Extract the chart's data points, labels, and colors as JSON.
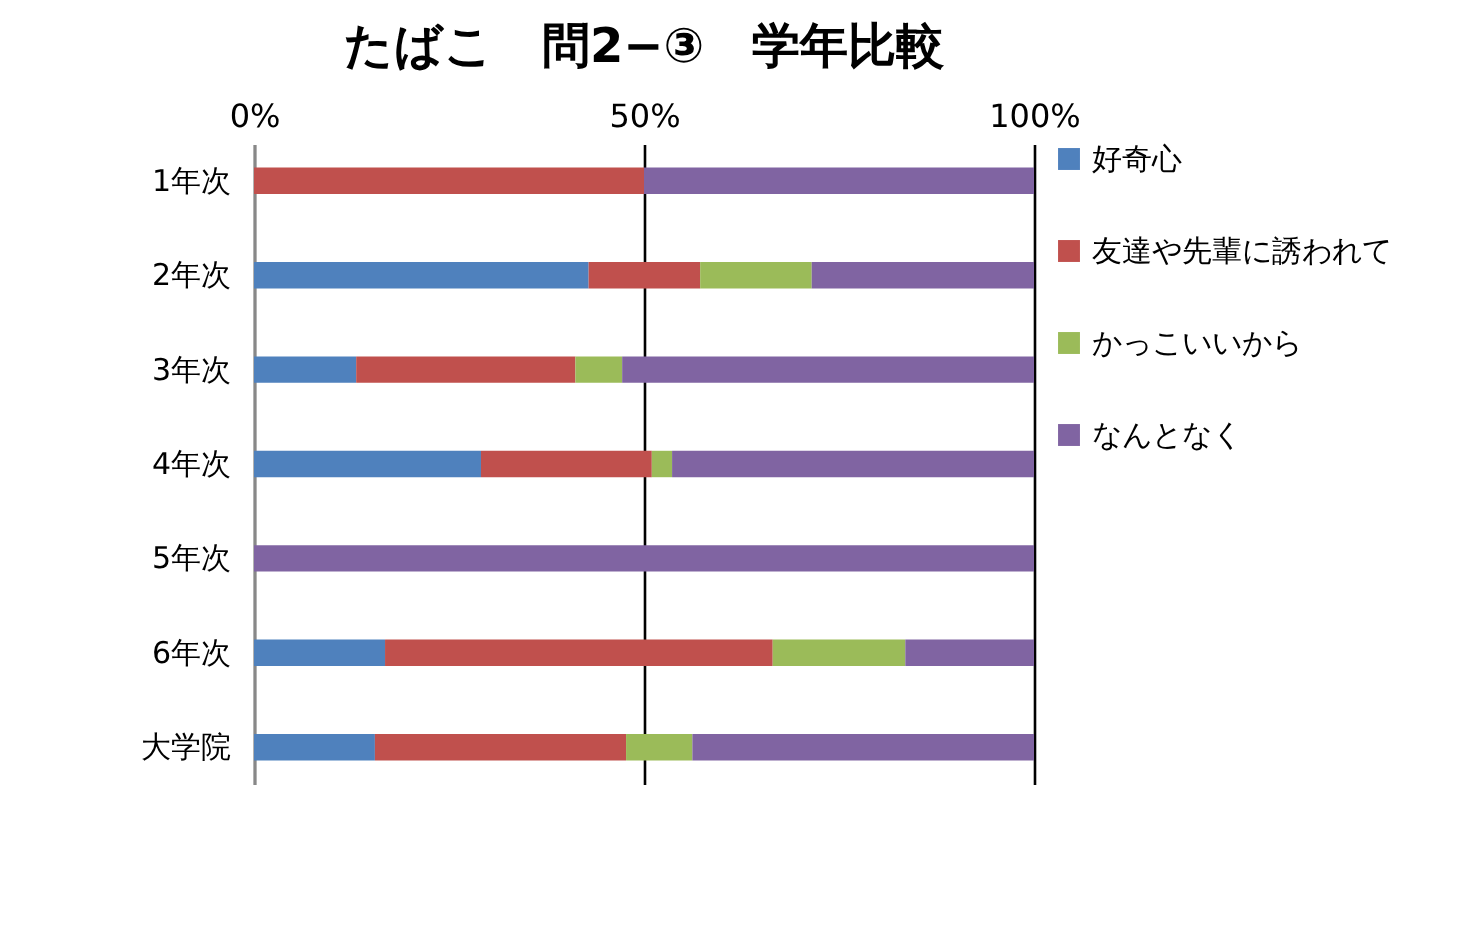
{
  "chart_data": {
    "type": "bar",
    "orientation": "horizontal",
    "stacked": true,
    "title": "たばこ　問2−③　学年比較",
    "categories": [
      "1年次",
      "2年次",
      "3年次",
      "4年次",
      "5年次",
      "6年次",
      "大学院"
    ],
    "series": [
      {
        "name": "好奇心",
        "color": "#4f81bd",
        "values": [
          0,
          42.9,
          13.1,
          29.1,
          0,
          16.8,
          15.5
        ]
      },
      {
        "name": "友達や先輩に誘われて",
        "color": "#c0504d",
        "values": [
          50,
          14.3,
          28.1,
          21.9,
          0,
          49.7,
          32.2
        ]
      },
      {
        "name": "かっこいいから",
        "color": "#9bbb59",
        "values": [
          0,
          14.3,
          6,
          2.6,
          0,
          17,
          8.5
        ]
      },
      {
        "name": "なんとなく",
        "color": "#8064a2",
        "values": [
          50,
          28.5,
          52.8,
          46.4,
          100,
          16.5,
          43.8
        ]
      }
    ],
    "xlim": [
      0,
      100
    ],
    "xticks": [
      {
        "value": 0,
        "label": "0%"
      },
      {
        "value": 50,
        "label": "50%"
      },
      {
        "value": 100,
        "label": "100%"
      }
    ],
    "grid": "x",
    "legend": "right"
  }
}
